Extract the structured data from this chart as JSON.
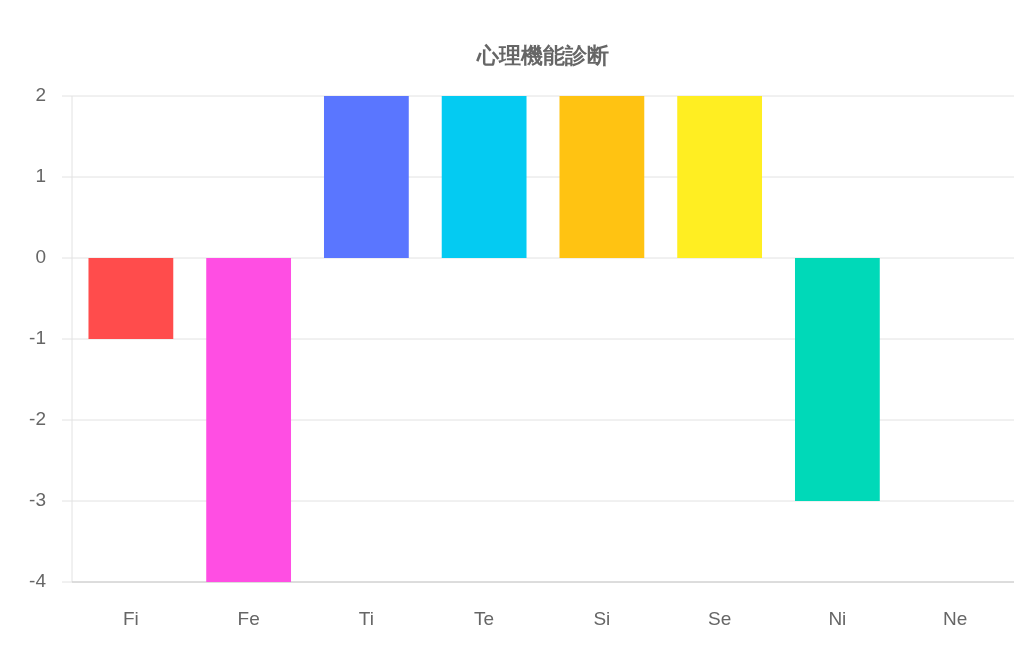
{
  "chart_data": {
    "type": "bar",
    "title": "心理機能診断",
    "categories": [
      "Fi",
      "Fe",
      "Ti",
      "Te",
      "Si",
      "Se",
      "Ni",
      "Ne"
    ],
    "values": [
      -1,
      -4,
      2,
      2,
      2,
      2,
      -3,
      0
    ],
    "colors": [
      "#ff4c4c",
      "#ff4ee3",
      "#5a76ff",
      "#04cbf2",
      "#ffc312",
      "#ffee22",
      "#00d9b8",
      null
    ],
    "ylim": [
      -4,
      2
    ],
    "yticks": [
      -4,
      -3,
      -2,
      -1,
      0,
      1,
      2
    ],
    "grid": true
  }
}
